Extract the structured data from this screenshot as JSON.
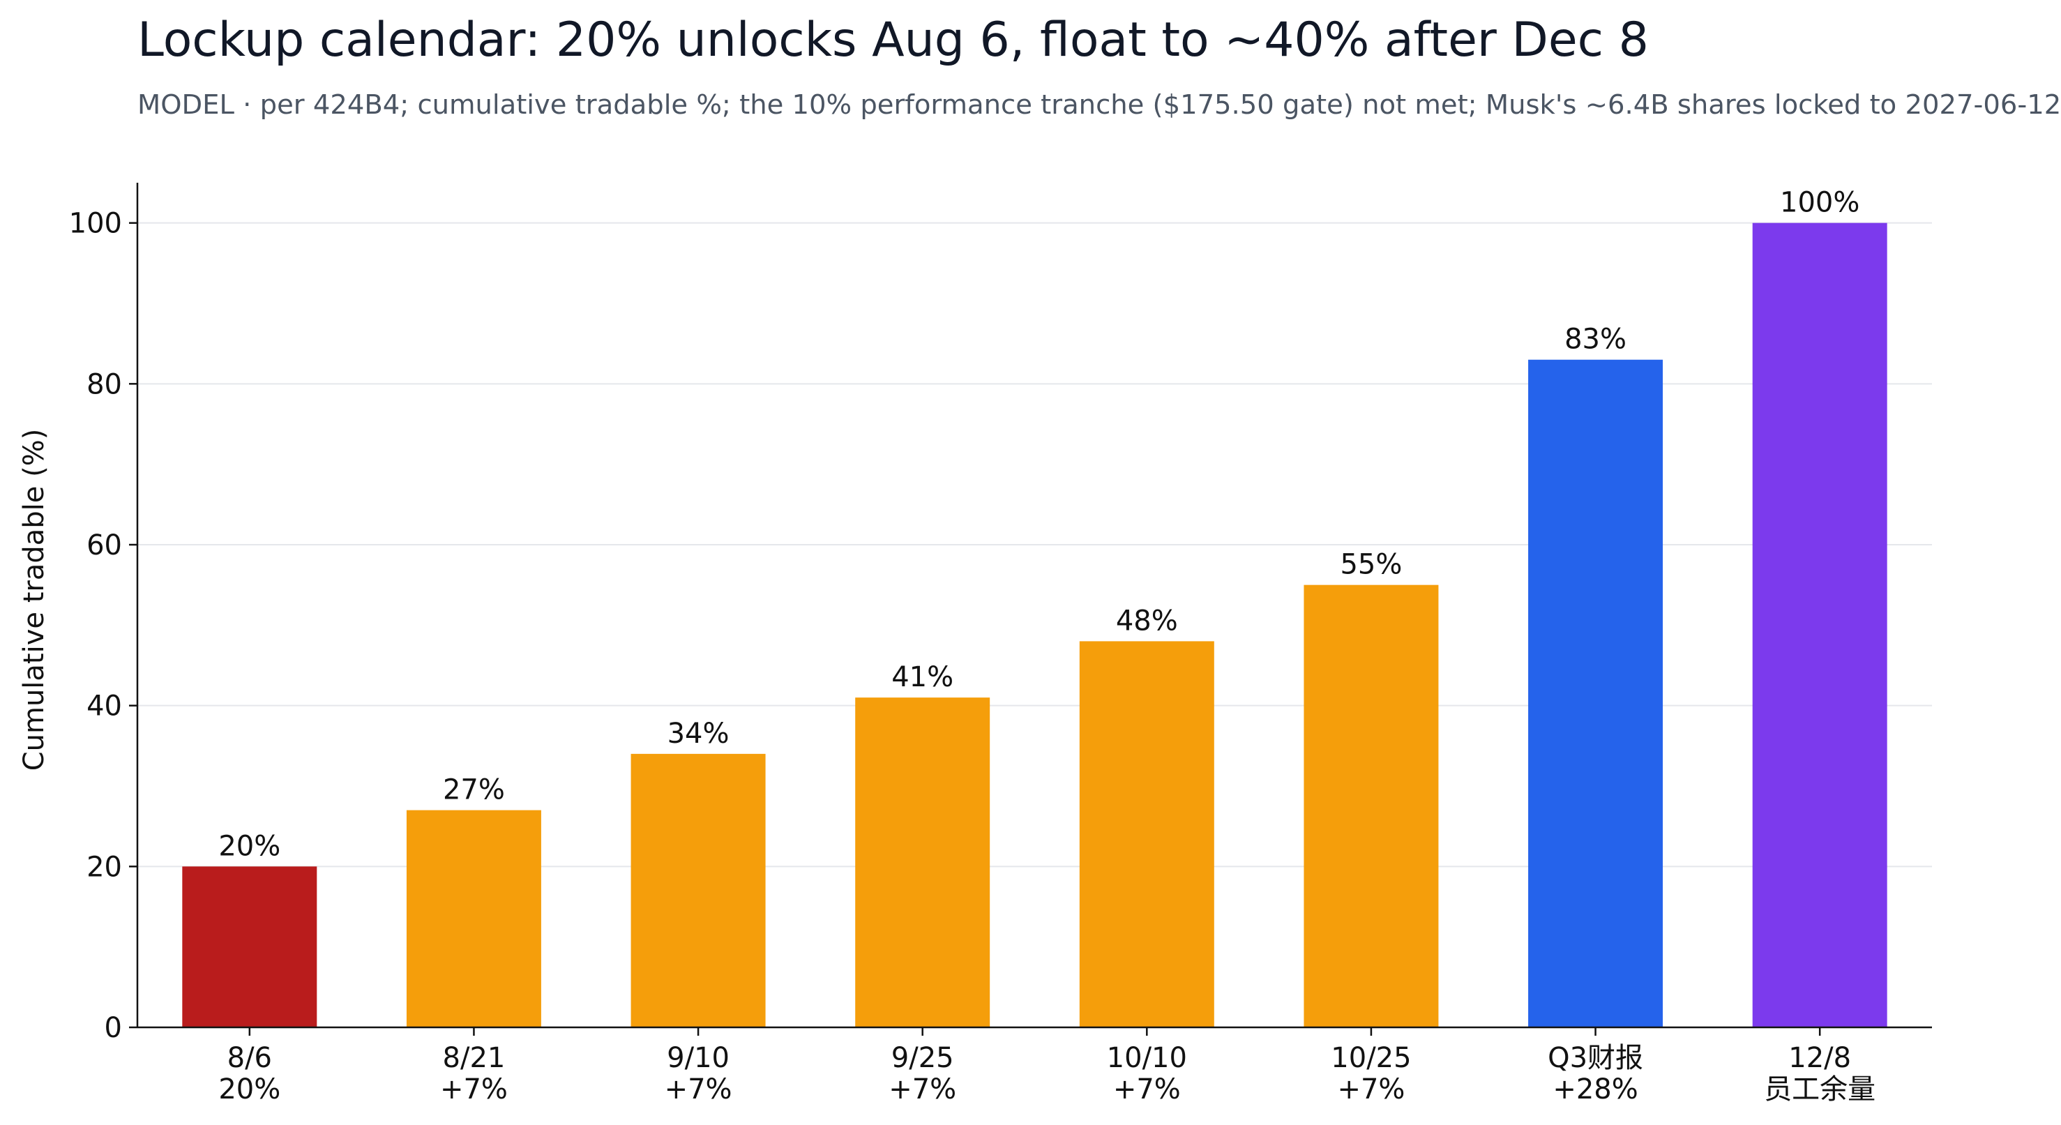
{
  "chart_data": {
    "type": "bar",
    "title": "Lockup calendar: 20% unlocks Aug 6, float to ~40% after Dec 8",
    "subtitle": "MODEL · per 424B4; cumulative tradable %; the 10% performance tranche ($175.50 gate) not met; Musk's ~6.4B shares locked to 2027-06-12",
    "xlabel": "",
    "ylabel": "Cumulative tradable (%)",
    "ylim": [
      0,
      105
    ],
    "yticks": [
      0,
      20,
      40,
      60,
      80,
      100
    ],
    "grid": "y",
    "legend": "none",
    "categories": [
      "8/6",
      "8/21",
      "9/10",
      "9/25",
      "10/10",
      "10/25",
      "Q3财报",
      "12/8"
    ],
    "sublabels": [
      "20%",
      "+7%",
      "+7%",
      "+7%",
      "+7%",
      "+7%",
      "+28%",
      "员工余量"
    ],
    "values": [
      20,
      27,
      34,
      41,
      48,
      55,
      83,
      100
    ],
    "value_labels": [
      "20%",
      "27%",
      "34%",
      "41%",
      "48%",
      "55%",
      "83%",
      "100%"
    ],
    "colors": [
      "#b91c1c",
      "#f59e0b",
      "#f59e0b",
      "#f59e0b",
      "#f59e0b",
      "#f59e0b",
      "#2563eb",
      "#7c3aed"
    ]
  },
  "style": {
    "axis_color": "#111111",
    "grid_color": "#e5e7eb",
    "text_color": "#111111"
  }
}
